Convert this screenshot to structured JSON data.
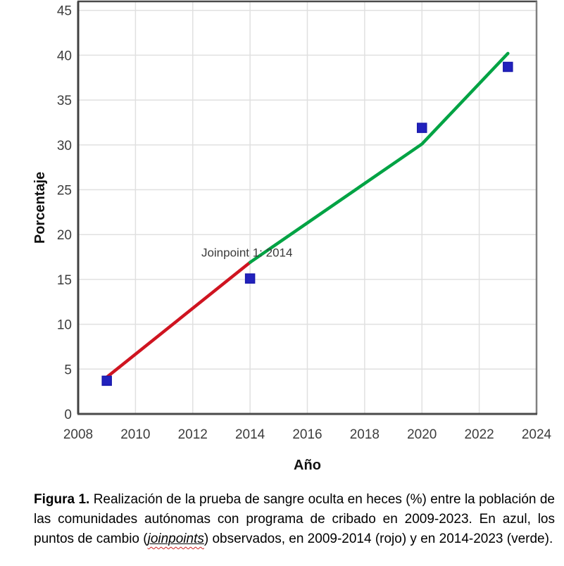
{
  "chart_data": {
    "type": "line",
    "title": "",
    "xlabel": "Año",
    "ylabel": "Porcentaje",
    "xlim": [
      2008,
      2024
    ],
    "ylim": [
      0,
      46
    ],
    "x_ticks": [
      2008,
      2010,
      2012,
      2014,
      2016,
      2018,
      2020,
      2022,
      2024
    ],
    "y_ticks": [
      0,
      5,
      10,
      15,
      20,
      25,
      30,
      35,
      40,
      45
    ],
    "grid": true,
    "legend": "none",
    "scatter": {
      "name": "observed-points",
      "color": "#2222bd",
      "border_color": "#1a1aad",
      "points": [
        [
          2009,
          3.7
        ],
        [
          2014,
          15.1
        ],
        [
          2020,
          31.9
        ],
        [
          2023,
          38.7
        ]
      ]
    },
    "segments": [
      {
        "name": "segment-2009-2014",
        "color": "#cf1420",
        "points": [
          [
            2009,
            4.1
          ],
          [
            2014,
            16.9
          ]
        ]
      },
      {
        "name": "segment-2014-2023",
        "color": "#00a344",
        "points": [
          [
            2014,
            16.9
          ],
          [
            2020,
            30.1
          ],
          [
            2023,
            40.2
          ]
        ]
      }
    ],
    "annotation": {
      "text": "Joinpoint 1: 2014",
      "x": 2012.3,
      "y": 17.55
    }
  },
  "figure": {
    "caption": {
      "label": "Figura 1.",
      "part1": " Realización de la prueba de sangre oculta en heces (%) entre la población de las comunidades autónomas con programa de cribado en 2009-2023. En azul, los puntos de cambio (",
      "highlight": "joinpoints",
      "part2": ") observados, en 2009-2014 (rojo) y en 2014-2023 (verde)."
    }
  }
}
